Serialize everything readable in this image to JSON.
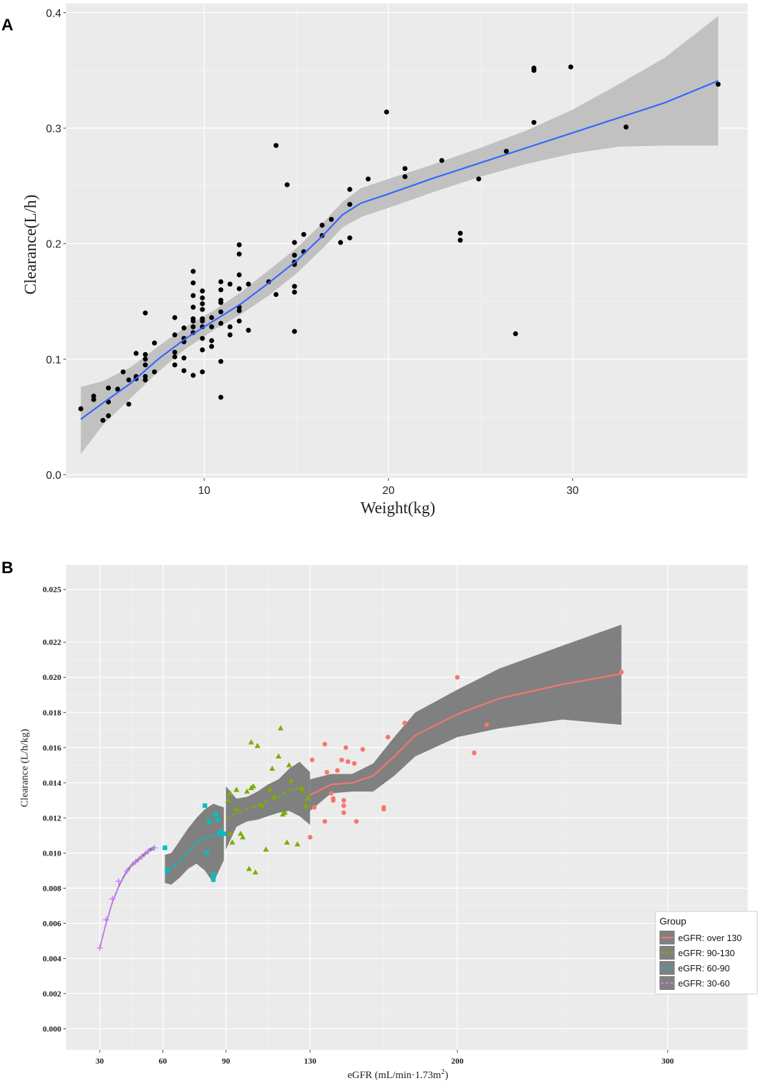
{
  "colors": {
    "panel_bg": "#ebebeb",
    "grid_major": "#ffffff",
    "grid_minor": "#f5f5f5",
    "ribbon_A": "#bdbdbd",
    "ribbon_B": "#808080",
    "line_A": "#3366ff",
    "points_A": "#000000",
    "legend_key_bg": "#808080"
  },
  "chart_data": [
    {
      "panel": "A",
      "type": "scatter",
      "xlabel": "Weight(kg)",
      "ylabel": "Clearance(L/h)",
      "xlim": [
        2.5,
        39.5
      ],
      "ylim": [
        -0.003,
        0.408
      ],
      "x_ticks": [
        10,
        20,
        30
      ],
      "x_tick_labels": [
        "10",
        "20",
        "30"
      ],
      "y_ticks": [
        0.0,
        0.1,
        0.2,
        0.3,
        0.4
      ],
      "y_tick_labels": [
        "0.0",
        "0.1",
        "0.2",
        "0.3",
        "0.4"
      ],
      "points": [
        [
          3.3,
          0.057
        ],
        [
          4.0,
          0.065
        ],
        [
          4.0,
          0.068
        ],
        [
          4.5,
          0.047
        ],
        [
          4.8,
          0.051
        ],
        [
          4.8,
          0.063
        ],
        [
          4.8,
          0.075
        ],
        [
          5.3,
          0.074
        ],
        [
          5.6,
          0.089
        ],
        [
          5.9,
          0.061
        ],
        [
          5.9,
          0.082
        ],
        [
          6.3,
          0.083
        ],
        [
          6.3,
          0.085
        ],
        [
          6.3,
          0.105
        ],
        [
          6.8,
          0.082
        ],
        [
          6.8,
          0.085
        ],
        [
          6.8,
          0.095
        ],
        [
          6.8,
          0.1
        ],
        [
          6.8,
          0.104
        ],
        [
          6.8,
          0.14
        ],
        [
          7.3,
          0.089
        ],
        [
          7.3,
          0.114
        ],
        [
          8.4,
          0.095
        ],
        [
          8.4,
          0.102
        ],
        [
          8.4,
          0.106
        ],
        [
          8.4,
          0.121
        ],
        [
          8.4,
          0.136
        ],
        [
          8.9,
          0.09
        ],
        [
          8.9,
          0.101
        ],
        [
          8.9,
          0.115
        ],
        [
          8.9,
          0.118
        ],
        [
          8.9,
          0.127
        ],
        [
          9.4,
          0.086
        ],
        [
          9.4,
          0.123
        ],
        [
          9.4,
          0.128
        ],
        [
          9.4,
          0.133
        ],
        [
          9.4,
          0.135
        ],
        [
          9.4,
          0.145
        ],
        [
          9.4,
          0.155
        ],
        [
          9.4,
          0.166
        ],
        [
          9.4,
          0.176
        ],
        [
          9.9,
          0.089
        ],
        [
          9.9,
          0.108
        ],
        [
          9.9,
          0.118
        ],
        [
          9.9,
          0.128
        ],
        [
          9.9,
          0.133
        ],
        [
          9.9,
          0.135
        ],
        [
          9.9,
          0.143
        ],
        [
          9.9,
          0.148
        ],
        [
          9.9,
          0.153
        ],
        [
          9.9,
          0.159
        ],
        [
          10.4,
          0.111
        ],
        [
          10.4,
          0.116
        ],
        [
          10.4,
          0.128
        ],
        [
          10.4,
          0.136
        ],
        [
          10.9,
          0.067
        ],
        [
          10.9,
          0.098
        ],
        [
          10.9,
          0.131
        ],
        [
          10.9,
          0.141
        ],
        [
          10.9,
          0.149
        ],
        [
          10.9,
          0.151
        ],
        [
          10.9,
          0.16
        ],
        [
          10.9,
          0.167
        ],
        [
          11.4,
          0.121
        ],
        [
          11.4,
          0.128
        ],
        [
          11.4,
          0.165
        ],
        [
          11.9,
          0.133
        ],
        [
          11.9,
          0.142
        ],
        [
          11.9,
          0.145
        ],
        [
          11.9,
          0.161
        ],
        [
          11.9,
          0.173
        ],
        [
          11.9,
          0.191
        ],
        [
          11.9,
          0.199
        ],
        [
          12.4,
          0.125
        ],
        [
          12.4,
          0.165
        ],
        [
          13.5,
          0.167
        ],
        [
          13.9,
          0.156
        ],
        [
          13.9,
          0.285
        ],
        [
          14.5,
          0.251
        ],
        [
          14.9,
          0.124
        ],
        [
          14.9,
          0.158
        ],
        [
          14.9,
          0.163
        ],
        [
          14.9,
          0.182
        ],
        [
          14.9,
          0.184
        ],
        [
          14.9,
          0.19
        ],
        [
          14.9,
          0.201
        ],
        [
          15.4,
          0.193
        ],
        [
          15.4,
          0.208
        ],
        [
          16.4,
          0.207
        ],
        [
          16.4,
          0.216
        ],
        [
          16.9,
          0.221
        ],
        [
          17.4,
          0.201
        ],
        [
          17.9,
          0.205
        ],
        [
          17.9,
          0.234
        ],
        [
          17.9,
          0.247
        ],
        [
          18.9,
          0.256
        ],
        [
          19.9,
          0.314
        ],
        [
          20.9,
          0.258
        ],
        [
          20.9,
          0.265
        ],
        [
          22.9,
          0.272
        ],
        [
          23.9,
          0.203
        ],
        [
          23.9,
          0.209
        ],
        [
          24.9,
          0.256
        ],
        [
          26.4,
          0.28
        ],
        [
          26.9,
          0.122
        ],
        [
          27.9,
          0.305
        ],
        [
          27.9,
          0.35
        ],
        [
          27.9,
          0.352
        ],
        [
          29.9,
          0.353
        ],
        [
          32.9,
          0.301
        ],
        [
          37.9,
          0.338
        ]
      ],
      "smooth": {
        "x": [
          3.3,
          4.5,
          6.0,
          7.5,
          9.0,
          10.5,
          12.0,
          13.5,
          15.0,
          16.5,
          17.5,
          18.5,
          20.0,
          22.5,
          25.0,
          27.5,
          30.0,
          32.5,
          35.0,
          37.9
        ],
        "y": [
          0.048,
          0.062,
          0.079,
          0.1,
          0.118,
          0.133,
          0.148,
          0.166,
          0.185,
          0.208,
          0.225,
          0.235,
          0.243,
          0.257,
          0.27,
          0.283,
          0.296,
          0.309,
          0.322,
          0.341
        ],
        "lower": [
          0.018,
          0.043,
          0.066,
          0.089,
          0.109,
          0.125,
          0.139,
          0.155,
          0.174,
          0.197,
          0.214,
          0.223,
          0.231,
          0.245,
          0.258,
          0.269,
          0.278,
          0.284,
          0.285,
          0.285
        ],
        "upper": [
          0.076,
          0.081,
          0.093,
          0.111,
          0.128,
          0.142,
          0.158,
          0.177,
          0.196,
          0.219,
          0.236,
          0.248,
          0.256,
          0.269,
          0.283,
          0.298,
          0.316,
          0.338,
          0.361,
          0.397
        ]
      }
    },
    {
      "panel": "B",
      "type": "scatter",
      "xlabel": "eGFR (mL/min·1.73m",
      "xlabel_sup": "2",
      "xlabel_end": ")",
      "ylabel": "Clearance (L/h/kg)",
      "xlim": [
        14,
        338
      ],
      "ylim": [
        -0.0012,
        0.0264
      ],
      "x_ticks": [
        30,
        60,
        90,
        130,
        200,
        300
      ],
      "x_tick_labels": [
        "30",
        "60",
        "90",
        "130",
        "200",
        "300"
      ],
      "y_ticks": [
        0.0,
        0.002,
        0.004,
        0.006,
        0.008,
        0.01,
        0.012,
        0.014,
        0.016,
        0.018,
        0.02,
        0.022,
        0.025
      ],
      "y_tick_labels": [
        "0.000",
        "0.002",
        "0.004",
        "0.006",
        "0.008",
        "0.010",
        "0.012",
        "0.014",
        "0.016",
        "0.018",
        "0.020",
        "0.022",
        "0.025"
      ],
      "legend": {
        "title": "Group",
        "position": "bottom-right",
        "entries": [
          "eGFR: over 130",
          "eGFR: 90-130",
          "eGFR: 60-90",
          "eGFR: 30-60"
        ]
      },
      "series": [
        {
          "name": "eGFR: over 130",
          "color": "#f8766d",
          "shape": "circle",
          "dash": "solid",
          "points": [
            [
              130,
              0.0109
            ],
            [
              131,
              0.0153
            ],
            [
              132,
              0.0126
            ],
            [
              137,
              0.0118
            ],
            [
              137,
              0.0162
            ],
            [
              138,
              0.0146
            ],
            [
              140,
              0.0134
            ],
            [
              141,
              0.013
            ],
            [
              141,
              0.0131
            ],
            [
              143,
              0.0147
            ],
            [
              145,
              0.0153
            ],
            [
              146,
              0.0123
            ],
            [
              146,
              0.0127
            ],
            [
              146,
              0.013
            ],
            [
              147,
              0.016
            ],
            [
              148,
              0.0152
            ],
            [
              151,
              0.0151
            ],
            [
              152,
              0.0118
            ],
            [
              155,
              0.0159
            ],
            [
              165,
              0.0125
            ],
            [
              165,
              0.0126
            ],
            [
              167,
              0.0166
            ],
            [
              175,
              0.0174
            ],
            [
              200,
              0.02
            ],
            [
              208,
              0.0157
            ],
            [
              214,
              0.0173
            ],
            [
              278,
              0.0203
            ]
          ],
          "smooth": {
            "x": [
              130,
              140,
              150,
              160,
              170,
              180,
              200,
              220,
              250,
              278
            ],
            "y": [
              0.0133,
              0.0139,
              0.014,
              0.0144,
              0.0155,
              0.0167,
              0.0179,
              0.0188,
              0.0196,
              0.0202
            ],
            "lower": [
              0.0124,
              0.0134,
              0.0135,
              0.0135,
              0.0144,
              0.0155,
              0.0166,
              0.0171,
              0.0176,
              0.0173
            ],
            "upper": [
              0.0142,
              0.0145,
              0.0145,
              0.0151,
              0.0166,
              0.018,
              0.0193,
              0.0205,
              0.0218,
              0.023
            ]
          }
        },
        {
          "name": "eGFR: 90-130",
          "color": "#7cae00",
          "shape": "triangle",
          "dash": "6,4",
          "points": [
            [
              91,
              0.013
            ],
            [
              92,
              0.0134
            ],
            [
              92,
              0.0111
            ],
            [
              93,
              0.0106
            ],
            [
              95,
              0.0125
            ],
            [
              95,
              0.0136
            ],
            [
              97,
              0.0111
            ],
            [
              98,
              0.0109
            ],
            [
              100,
              0.0135
            ],
            [
              101,
              0.0091
            ],
            [
              102,
              0.0163
            ],
            [
              102,
              0.0137
            ],
            [
              103,
              0.0138
            ],
            [
              104,
              0.0089
            ],
            [
              105,
              0.0161
            ],
            [
              107,
              0.0127
            ],
            [
              109,
              0.0102
            ],
            [
              111,
              0.0136
            ],
            [
              112,
              0.0148
            ],
            [
              113,
              0.0132
            ],
            [
              115,
              0.0155
            ],
            [
              116,
              0.0171
            ],
            [
              117,
              0.0122
            ],
            [
              118,
              0.0123
            ],
            [
              119,
              0.0106
            ],
            [
              120,
              0.015
            ],
            [
              121,
              0.0141
            ],
            [
              124,
              0.0105
            ],
            [
              126,
              0.0137
            ],
            [
              128,
              0.0127
            ],
            [
              129,
              0.0131
            ]
          ],
          "smooth": {
            "x": [
              90,
              95,
              100,
              105,
              110,
              115,
              120,
              125,
              130
            ],
            "y": [
              0.012,
              0.0123,
              0.0125,
              0.0127,
              0.013,
              0.0132,
              0.0136,
              0.0137,
              0.0131
            ],
            "lower": [
              0.0102,
              0.0115,
              0.0118,
              0.0119,
              0.0121,
              0.0123,
              0.0124,
              0.0121,
              0.0116
            ],
            "upper": [
              0.0138,
              0.0131,
              0.0132,
              0.0135,
              0.0139,
              0.0142,
              0.0148,
              0.0152,
              0.0146
            ]
          }
        },
        {
          "name": "eGFR: 60-90",
          "color": "#00bfc4",
          "shape": "square",
          "dash": "8,4",
          "points": [
            [
              61,
              0.0103
            ],
            [
              62,
              0.009
            ],
            [
              80,
              0.0127
            ],
            [
              81,
              0.01
            ],
            [
              82,
              0.0118
            ],
            [
              84,
              0.0088
            ],
            [
              84,
              0.0085
            ],
            [
              85,
              0.0122
            ],
            [
              86,
              0.0119
            ],
            [
              87,
              0.0111
            ],
            [
              88,
              0.0112
            ],
            [
              89,
              0.0111
            ]
          ],
          "smooth": {
            "x": [
              61,
              64,
              68,
              72,
              76,
              80,
              84,
              89
            ],
            "y": [
              0.0091,
              0.0091,
              0.0095,
              0.0101,
              0.0106,
              0.0109,
              0.011,
              0.0111
            ],
            "lower": [
              0.0083,
              0.0082,
              0.0086,
              0.0091,
              0.0094,
              0.009,
              0.0083,
              0.0096
            ],
            "upper": [
              0.0099,
              0.01,
              0.0107,
              0.0114,
              0.012,
              0.0125,
              0.0128,
              0.0126
            ]
          }
        },
        {
          "name": "eGFR: 30-60",
          "color": "#c77cff",
          "shape": "plus",
          "dash": "10,4",
          "points": [
            [
              30,
              0.0046
            ],
            [
              33,
              0.0062
            ],
            [
              36,
              0.0074
            ],
            [
              39,
              0.0084
            ],
            [
              43,
              0.009
            ],
            [
              47,
              0.0095
            ],
            [
              50,
              0.0098
            ],
            [
              53,
              0.0101
            ],
            [
              56,
              0.0103
            ]
          ],
          "smooth": {
            "x": [
              30,
              33,
              36,
              39,
              42,
              45,
              48,
              51,
              54,
              56
            ],
            "y": [
              0.0046,
              0.006,
              0.0072,
              0.0081,
              0.0088,
              0.0093,
              0.0096,
              0.0099,
              0.0102,
              0.0103
            ],
            "lower": [
              0.0045,
              0.0059,
              0.0071,
              0.008,
              0.0087,
              0.0092,
              0.0095,
              0.0098,
              0.0101,
              0.0102
            ],
            "upper": [
              0.0047,
              0.0061,
              0.0073,
              0.0082,
              0.0089,
              0.0094,
              0.0097,
              0.01,
              0.0103,
              0.0104
            ]
          }
        }
      ]
    }
  ]
}
